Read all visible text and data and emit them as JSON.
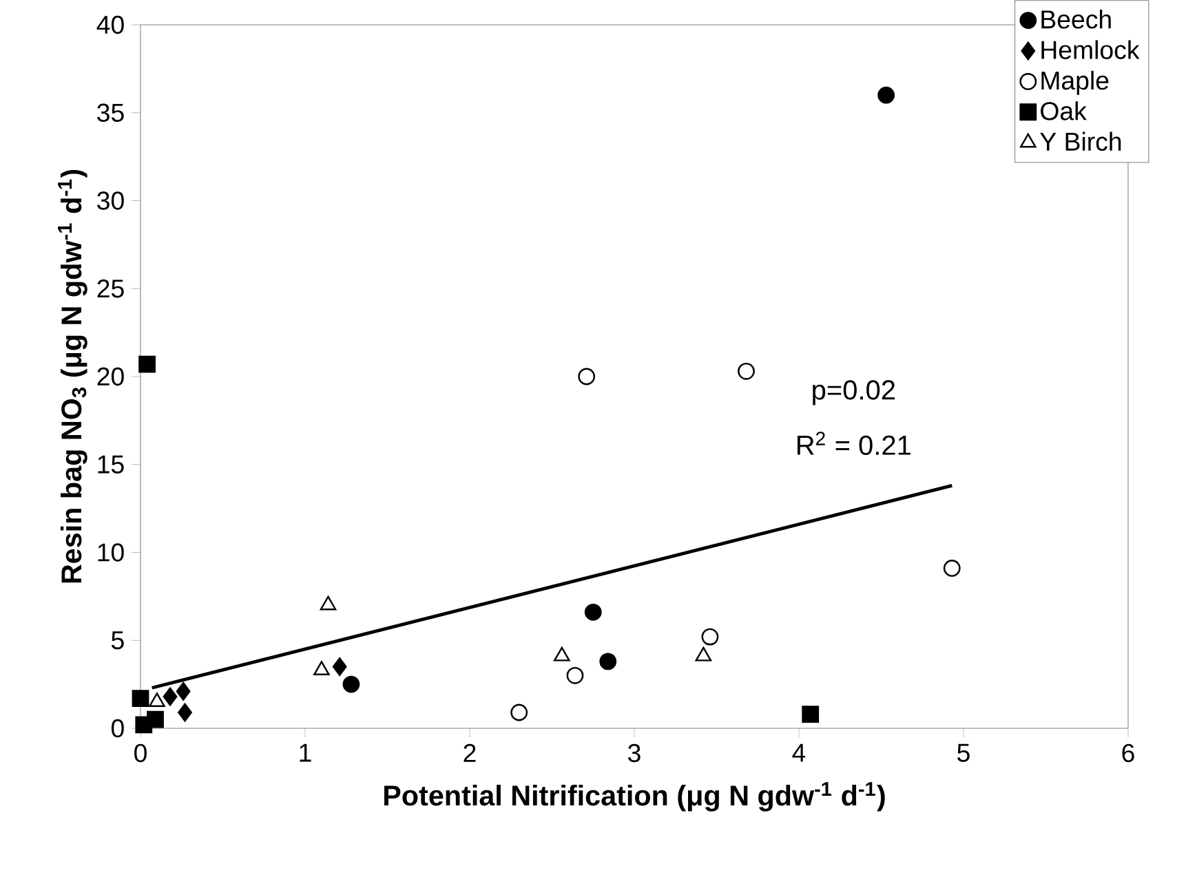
{
  "chart_data": {
    "type": "scatter",
    "xlabel": "Potential Nitrification (μg N gdw$^{-1}$ d$^{-1}$)",
    "ylabel": "Resin bag NO$_{3}$ (μg N gdw$^{-1}$ d$^{-1}$)",
    "xlim": [
      0,
      6
    ],
    "ylim": [
      0,
      40
    ],
    "xticks": [
      0,
      1,
      2,
      3,
      4,
      5,
      6
    ],
    "yticks": [
      0,
      5,
      10,
      15,
      20,
      25,
      30,
      35,
      40
    ],
    "legend": "top right",
    "series": [
      {
        "name": "Beech",
        "marker": "circle",
        "color": "#000000",
        "x": [
          4.53,
          2.75,
          2.84,
          1.28
        ],
        "values": [
          36,
          6.6,
          3.8,
          2.5
        ]
      },
      {
        "name": "Hemlock",
        "marker": "diamond",
        "color": "#000000",
        "x": [
          1.21,
          0.18,
          0.26,
          0.27
        ],
        "values": [
          3.5,
          1.8,
          2.1,
          0.9
        ]
      },
      {
        "name": "Maple",
        "marker": "circle",
        "color": "#ffffff",
        "x": [
          2.3,
          2.64,
          2.71,
          3.68,
          3.46,
          4.93
        ],
        "values": [
          0.9,
          3.0,
          20.0,
          20.3,
          5.2,
          9.1
        ]
      },
      {
        "name": "Oak",
        "marker": "square",
        "color": "#000000",
        "x": [
          0.04,
          4.07,
          0.0,
          0.02,
          0.09
        ],
        "values": [
          20.7,
          0.8,
          1.7,
          0.2,
          0.5
        ]
      },
      {
        "name": "Y Birch",
        "marker": "triangle",
        "color": "#ffffff",
        "x": [
          1.14,
          1.1,
          2.56,
          3.42,
          0.1
        ],
        "values": [
          7.0,
          3.3,
          4.1,
          4.1,
          1.5
        ]
      },
      {
        "type": "line",
        "marker": "none",
        "color": "#000000",
        "x": [
          0.07,
          4.93
        ],
        "values": [
          2.3,
          13.8
        ]
      }
    ],
    "annotations": [
      "p=0.02",
      "R$^{2}$ = 0.21"
    ]
  }
}
